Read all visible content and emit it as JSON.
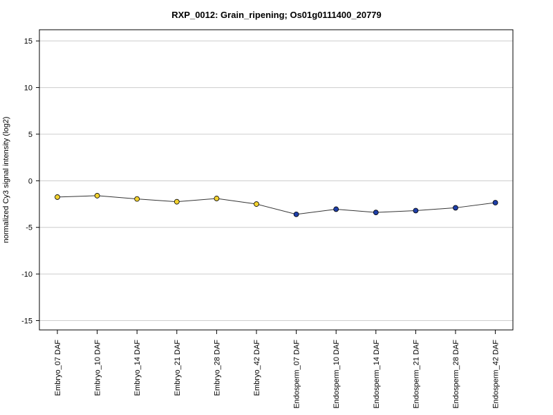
{
  "chart_data": {
    "type": "line",
    "title": "RXP_0012: Grain_ripening; Os01g0111400_20779",
    "xlabel": "",
    "ylabel": "normalized Cy3 signal intensity (log2)",
    "ylim": [
      -16,
      16.2
    ],
    "yticks": [
      -15,
      -10,
      -5,
      0,
      5,
      10,
      15
    ],
    "grid": true,
    "categories": [
      "Embryo_07 DAF",
      "Embryo_10 DAF",
      "Embryo_14 DAF",
      "Embryo_21 DAF",
      "Embryo_28 DAF",
      "Embryo_42 DAF",
      "Endosperm_07 DAF",
      "Endosperm_10 DAF",
      "Endosperm_14 DAF",
      "Endosperm_21 DAF",
      "Endosperm_28 DAF",
      "Endosperm_42 DAF"
    ],
    "values": [
      -1.75,
      -1.6,
      -1.95,
      -2.25,
      -1.9,
      -2.5,
      -3.6,
      -3.05,
      -3.4,
      -3.2,
      -2.9,
      -2.35
    ],
    "point_colors": [
      "#f2d230",
      "#f2d230",
      "#f2d230",
      "#f2d230",
      "#f2d230",
      "#f2d230",
      "#1f3fa8",
      "#1f3fa8",
      "#1f3fa8",
      "#1f3fa8",
      "#1f3fa8",
      "#1f3fa8"
    ],
    "line_color": "#333333",
    "grid_color": "#cccccc"
  }
}
